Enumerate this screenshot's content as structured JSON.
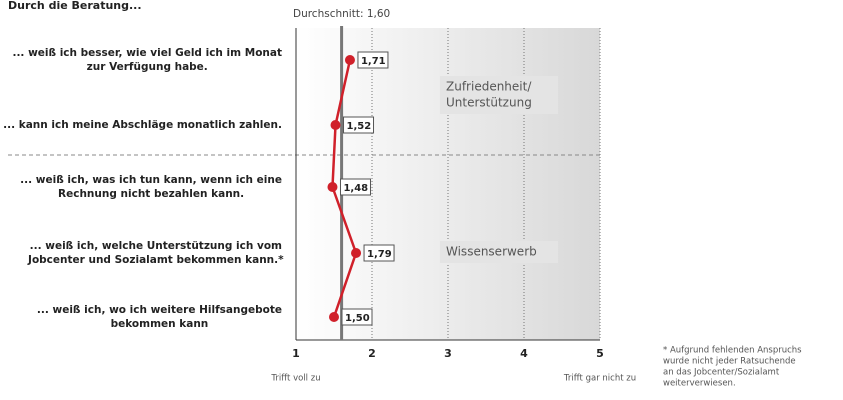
{
  "chart_data": {
    "type": "line",
    "title": "Durch die Beratung...",
    "average": 1.6,
    "average_label": "Durchschnitt: 1,60",
    "categories": [
      [
        "... weiß ich besser, wie viel Geld ich im Monat",
        "zur Verfügung habe."
      ],
      [
        "... kann ich meine Abschläge monatlich zahlen."
      ],
      [
        "... weiß ich, was ich tun kann, wenn ich eine",
        "Rechnung nicht bezahlen kann."
      ],
      [
        "... weiß ich, welche Unterstützung ich vom",
        "Jobcenter und Sozialamt bekommen kann.*"
      ],
      [
        "... weiß ich, wo ich weitere Hilfsangebote",
        "bekommen kann"
      ]
    ],
    "series": [
      {
        "name": null,
        "color": "#d0202a",
        "values": [
          1.71,
          1.52,
          1.48,
          1.79,
          1.5
        ],
        "value_labels": [
          "1,71",
          "1,52",
          "1,48",
          "1,79",
          "1,50"
        ]
      }
    ],
    "xlim": [
      1,
      5
    ],
    "xticks": [
      1,
      2,
      3,
      4,
      5
    ],
    "x_label_left": "Trifft voll zu",
    "x_label_right": "Trifft gar nicht zu",
    "group_labels": [
      [
        "Zufriedenheit/",
        "Unterstützung"
      ],
      [
        "Wissenserwerb"
      ]
    ],
    "footnote": [
      "* Aufgrund fehlenden Anspruchs",
      "wurde nicht jeder Ratsuchende",
      "an das Jobcenter/Sozialamt",
      "weiterverwiesen."
    ]
  }
}
